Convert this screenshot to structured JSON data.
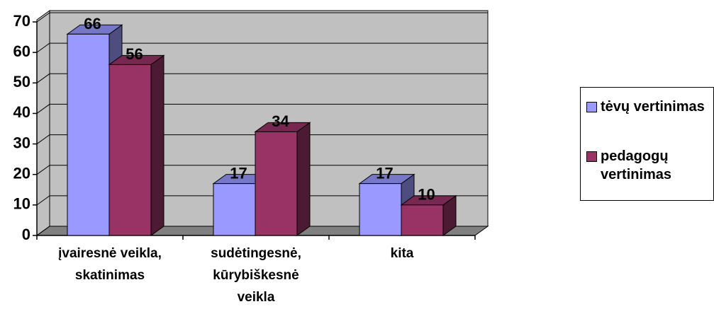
{
  "chart_data": {
    "type": "bar3d",
    "categories": [
      "įvairesnė veikla, skatinimas",
      "sudėtingesnė, kūrybiškesnė veikla",
      "kita"
    ],
    "series": [
      {
        "name": "tėvų vertinimas",
        "color": "#9999ff",
        "values": [
          66,
          17,
          17
        ]
      },
      {
        "name": "pedagogų vertinimas",
        "color": "#993366",
        "values": [
          56,
          34,
          10
        ]
      }
    ],
    "ylim": [
      0,
      70
    ],
    "yticks": [
      0,
      10,
      20,
      30,
      40,
      50,
      60,
      70
    ],
    "grid": true,
    "legend": "right"
  }
}
